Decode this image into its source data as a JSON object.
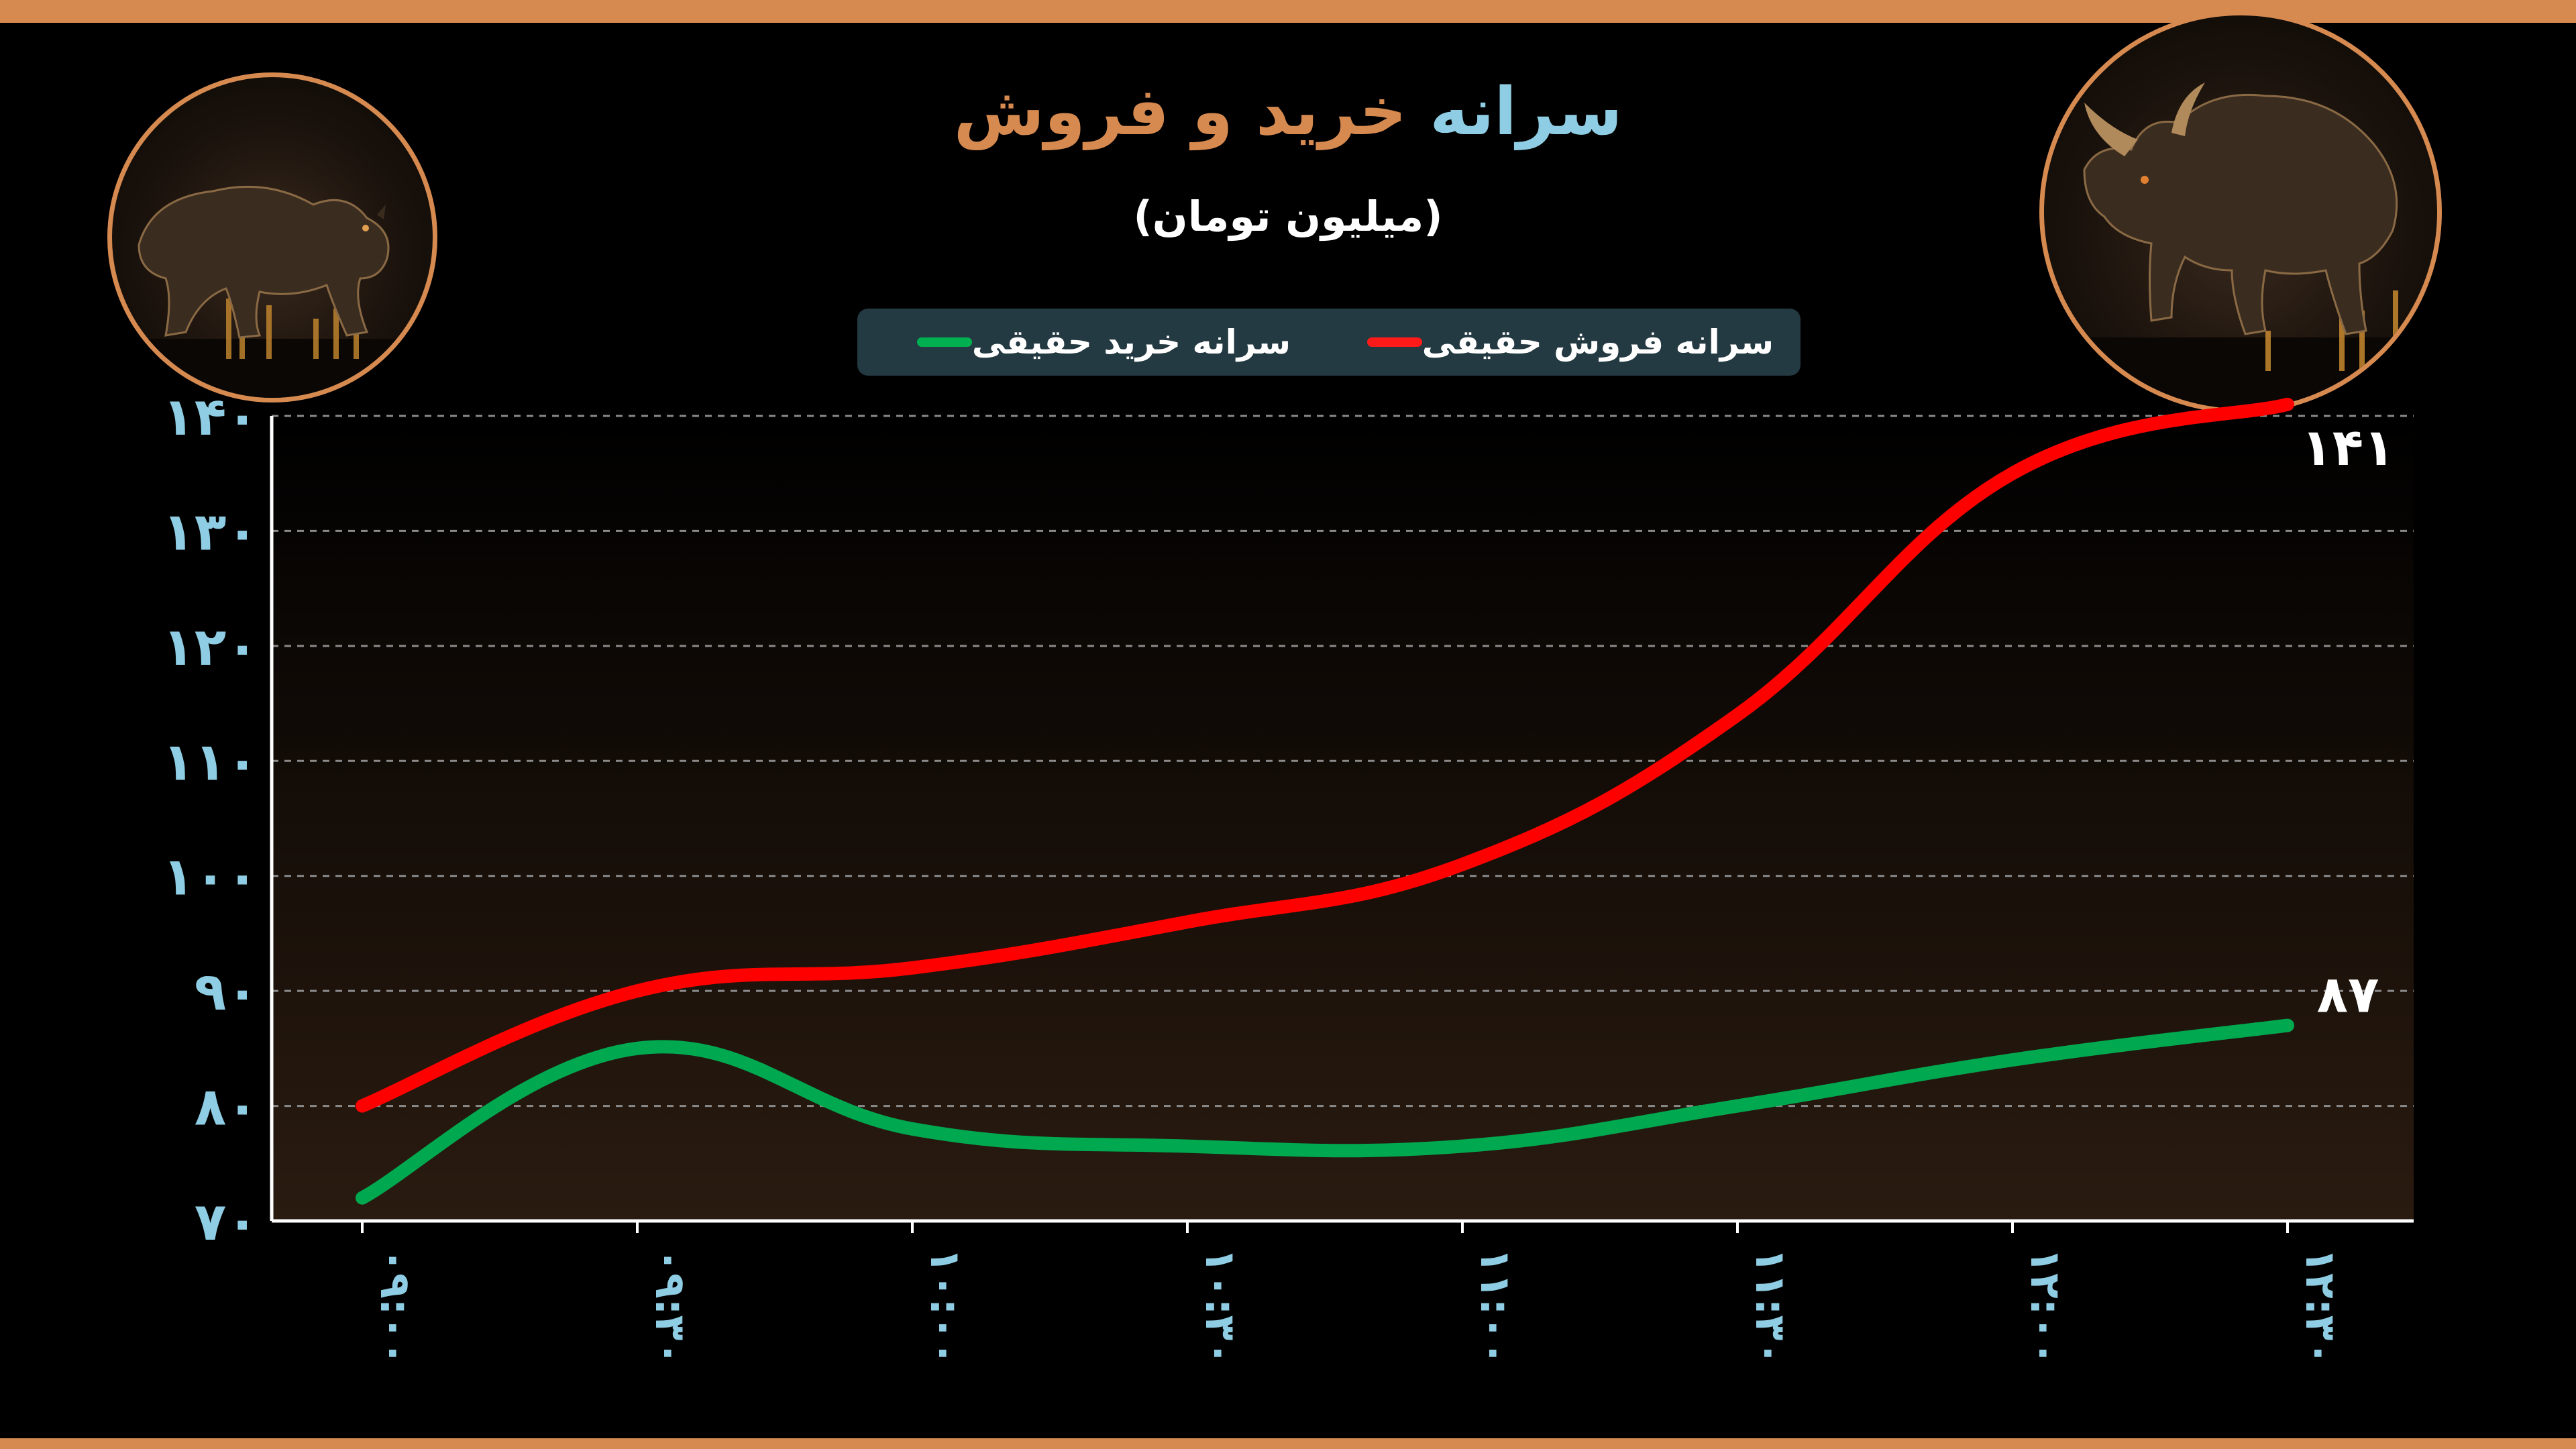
{
  "title_part1": "سرانه",
  "title_part2": "خرید و فروش",
  "subtitle": "(میلیون تومان)",
  "legend": {
    "sell_label": "سرانه فروش حقیقی",
    "buy_label": "سرانه خرید حقیقی"
  },
  "colors": {
    "accent": "#d68a50",
    "title_blue": "#8ecde3",
    "sell": "#ff0000",
    "buy": "#00a84f",
    "legend_bg": "#243a42",
    "axis_text": "#8ecde3"
  },
  "icons": [
    "bear-icon",
    "bull-icon"
  ],
  "chart_data": {
    "type": "line",
    "categories": [
      "۰۹:۰۰",
      "۰۹:۳۰",
      "۱۰:۰۰",
      "۱۰:۳۰",
      "۱۱:۰۰",
      "۱۱:۳۰",
      "۱۲:۰۰",
      "۱۲:۳۰"
    ],
    "ylim": [
      70,
      140
    ],
    "yticks": [
      70,
      80,
      90,
      100,
      110,
      120,
      130,
      140
    ],
    "ytick_labels": [
      "۷۰",
      "۸۰",
      "۹۰",
      "۱۰۰",
      "۱۱۰",
      "۱۲۰",
      "۱۳۰",
      "۱۴۰"
    ],
    "grid": true,
    "legend_position": "top",
    "series": [
      {
        "name": "سرانه فروش حقیقی",
        "color": "#ff0000",
        "values": [
          80,
          90,
          92,
          96,
          101,
          114,
          135,
          141
        ],
        "end_label": "۱۴۱"
      },
      {
        "name": "سرانه خرید حقیقی",
        "color": "#00a84f",
        "values": [
          72,
          85,
          78,
          76.5,
          76.5,
          80,
          84,
          87
        ],
        "end_label": "۸۷"
      }
    ]
  }
}
